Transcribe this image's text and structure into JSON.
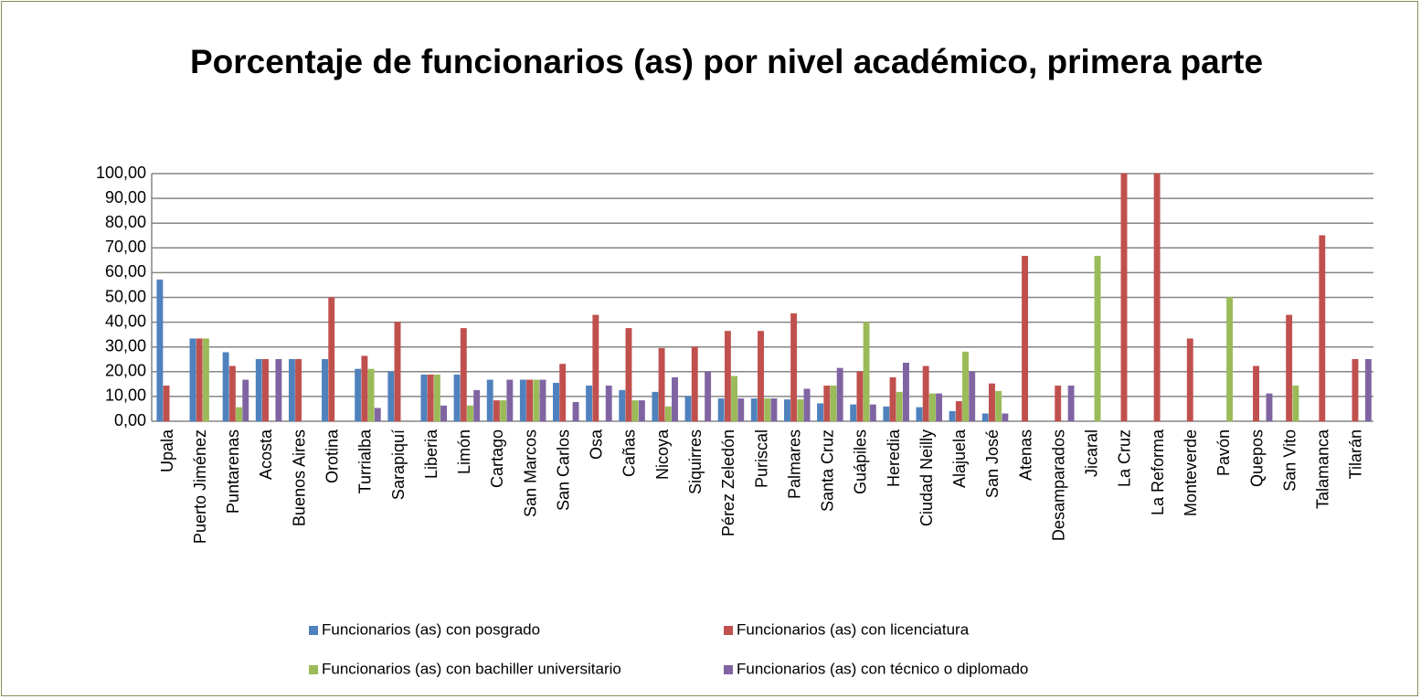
{
  "chart_data": {
    "type": "bar",
    "title": "Porcentaje de funcionarios (as) por nivel académico, primera parte",
    "categories": [
      "Upala",
      "Puerto Jiménez",
      "Puntarenas",
      "Acosta",
      "Buenos Aires",
      "Orotina",
      "Turrialba",
      "Sarapiquí",
      "Liberia",
      "Limón",
      "Cartago",
      "San Marcos",
      "San Carlos",
      "Osa",
      "Cañas",
      "Nicoya",
      "Siquirres",
      "Pérez Zeledón",
      "Puriscal",
      "Palmares",
      "Santa Cruz",
      "Guápiles",
      "Heredia",
      "Ciudad Neilly",
      "Alajuela",
      "San José",
      "Atenas",
      "Desamparados",
      "Jicaral",
      "La Cruz",
      "La Reforma",
      "Monteverde",
      "Pavón",
      "Quepos",
      "San Vito",
      "Talamanca",
      "Tilarán"
    ],
    "series": [
      {
        "name": "Funcionarios (as) con posgrado",
        "color": "#4f81bd",
        "values": [
          57.14,
          33.33,
          27.78,
          25,
          25,
          25,
          21.05,
          20,
          18.75,
          18.75,
          16.67,
          16.67,
          15.38,
          14.29,
          12.5,
          11.76,
          10,
          9.09,
          9.09,
          8.7,
          7.14,
          6.67,
          5.88,
          5.56,
          4,
          3.03,
          0,
          0,
          0,
          0,
          0,
          0,
          0,
          0,
          0,
          0,
          0
        ]
      },
      {
        "name": "Funcionarios (as) con licenciatura",
        "color": "#c0504d",
        "values": [
          14.29,
          33.33,
          22.22,
          25,
          25,
          50,
          26.32,
          40,
          18.75,
          37.5,
          8.33,
          16.67,
          23.08,
          42.86,
          37.5,
          29.41,
          30,
          36.36,
          36.36,
          43.48,
          14.29,
          20,
          17.65,
          22.22,
          8,
          15.15,
          66.67,
          14.29,
          0,
          100,
          100,
          33.33,
          0,
          22.22,
          42.86,
          75,
          25
        ]
      },
      {
        "name": "Funcionarios (as) con bachiller universitario",
        "color": "#9bbb59",
        "values": [
          0,
          33.33,
          5.56,
          0,
          0,
          0,
          21.05,
          0,
          18.75,
          6.25,
          8.33,
          16.67,
          0,
          0,
          8.33,
          5.88,
          0,
          18.18,
          9.09,
          8.7,
          14.29,
          40,
          11.76,
          11.11,
          28,
          12.12,
          0,
          0,
          66.67,
          0,
          0,
          0,
          50,
          0,
          14.29,
          0,
          0
        ]
      },
      {
        "name": "Funcionarios (as) con técnico o diplomado",
        "color": "#8064a2",
        "values": [
          0,
          0,
          16.67,
          25,
          0,
          0,
          5.26,
          0,
          6.25,
          12.5,
          16.67,
          16.67,
          7.69,
          14.29,
          8.33,
          17.65,
          20,
          9.09,
          9.09,
          13.04,
          21.43,
          6.67,
          23.53,
          11.11,
          20,
          3.03,
          0,
          14.29,
          0,
          0,
          0,
          0,
          0,
          11.11,
          0,
          0,
          25
        ]
      }
    ],
    "ylim": [
      0,
      100
    ],
    "yticks": [
      {
        "value": 0,
        "label": "0,00"
      },
      {
        "value": 10,
        "label": "10,00"
      },
      {
        "value": 20,
        "label": "20,00"
      },
      {
        "value": 30,
        "label": "30,00"
      },
      {
        "value": 40,
        "label": "40,00"
      },
      {
        "value": 50,
        "label": "50,00"
      },
      {
        "value": 60,
        "label": "60,00"
      },
      {
        "value": 70,
        "label": "70,00"
      },
      {
        "value": 80,
        "label": "80,00"
      },
      {
        "value": 90,
        "label": "90,00"
      },
      {
        "value": 100,
        "label": "100,00"
      }
    ],
    "grid": true,
    "legend": "bottom"
  }
}
